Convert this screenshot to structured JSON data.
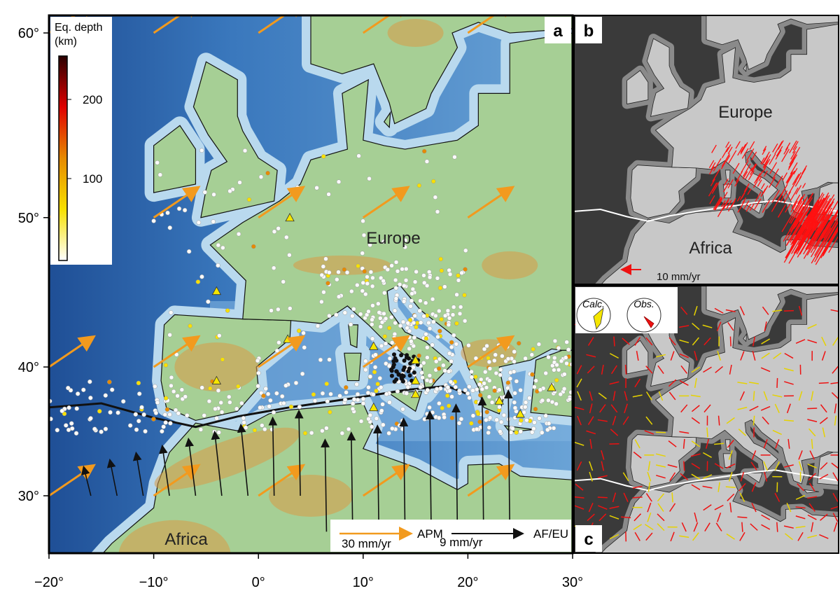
{
  "axes": {
    "lon_ticks": [
      {
        "value": -20,
        "label": "−20°"
      },
      {
        "value": -10,
        "label": "−10°"
      },
      {
        "value": 0,
        "label": "0°"
      },
      {
        "value": 10,
        "label": "10°"
      },
      {
        "value": 20,
        "label": "20°"
      },
      {
        "value": 30,
        "label": "30°"
      }
    ],
    "lat_ticks": [
      {
        "value": 30,
        "label": "30°"
      },
      {
        "value": 40,
        "label": "40°"
      },
      {
        "value": 50,
        "label": "50°"
      },
      {
        "value": 60,
        "label": "60°"
      }
    ]
  },
  "panels": {
    "a": {
      "label": "a",
      "europe": "Europe",
      "africa": "Africa",
      "colorbar": {
        "title_lines": [
          "Eq. depth",
          "(km)"
        ],
        "ticks": [
          100,
          200
        ]
      },
      "legend": {
        "apm_scale": "30 mm/yr",
        "apm": "APM",
        "afeu_scale": "9 mm/yr",
        "afeu": "AF/EU"
      }
    },
    "b": {
      "label": "b",
      "europe": "Europe",
      "africa": "Africa",
      "scale": "10 mm/yr"
    },
    "c": {
      "label": "c",
      "calc": "Calc.",
      "obs": "Obs."
    }
  }
}
